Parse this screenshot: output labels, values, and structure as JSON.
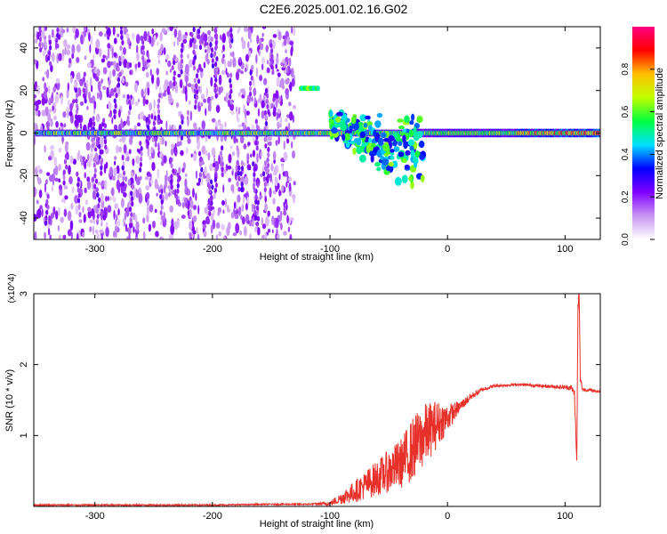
{
  "title": "C2E6.2025.001.02.16.G02",
  "chart_data": [
    {
      "type": "heatmap",
      "xlabel": "Height of straight line (km)",
      "ylabel": "Frequency (Hz)",
      "xlim": [
        -352,
        130
      ],
      "ylim": [
        -50,
        50
      ],
      "x_ticks": [
        -300,
        -200,
        -100,
        0,
        100
      ],
      "x_tick_labels": [
        "-300",
        "-200",
        "-100",
        "0",
        "100"
      ],
      "y_ticks": [
        -40,
        -20,
        0,
        20,
        40
      ],
      "y_tick_labels": [
        "-40",
        "-20",
        "0",
        "20",
        "40"
      ],
      "colorbar": {
        "label": "Normalized spectral amplitude",
        "range": [
          0,
          1
        ],
        "ticks": [
          0.0,
          0.2,
          0.4,
          0.6,
          0.8
        ],
        "tick_labels": [
          "0.0",
          "0.2",
          "0.4",
          "0.6",
          "0.8"
        ],
        "colormap": [
          "#ffffff",
          "#c896f0",
          "#8000ff",
          "#0000ff",
          "#00e0ff",
          "#00ff40",
          "#c0ff00",
          "#ffc000",
          "#ff0000",
          "#ff0080"
        ]
      },
      "features": [
        {
          "x_range": [
            -352,
            -130
          ],
          "freq_range": [
            -50,
            50
          ],
          "amplitude": 0.1,
          "desc": "scattered low-amplitude speckle"
        },
        {
          "x_range": [
            -352,
            130
          ],
          "freq_center": 0,
          "amplitude_range": [
            0.3,
            0.9
          ],
          "desc": "main signal band near 0 Hz"
        },
        {
          "x_range": [
            -125,
            -110
          ],
          "freq_center": 21,
          "amplitude": 0.45,
          "desc": "isolated feature near 20 Hz"
        },
        {
          "x_range": [
            -100,
            -20
          ],
          "freq_range": [
            -35,
            12
          ],
          "amplitude": 0.4,
          "desc": "spreading scintillation region"
        }
      ]
    },
    {
      "type": "line",
      "xlabel": "Height of straight line (km)",
      "ylabel": "SNR (10 * v/v)",
      "y_multiplier": "(x10^4)",
      "xlim": [
        -352,
        130
      ],
      "ylim": [
        0,
        3
      ],
      "x_ticks": [
        -300,
        -200,
        -100,
        0,
        100
      ],
      "x_tick_labels": [
        "-300",
        "-200",
        "-100",
        "0",
        "100"
      ],
      "y_ticks": [
        1,
        2,
        3
      ],
      "y_tick_labels": [
        "1",
        "2",
        "3"
      ],
      "color": "#e8302a",
      "series": [
        {
          "x": [
            -352,
            -300,
            -250,
            -200,
            -150,
            -120,
            -100,
            -80,
            -60,
            -40,
            -30,
            -20,
            -10,
            0,
            10,
            20,
            30,
            40,
            60,
            80,
            100,
            105,
            108,
            110,
            111,
            112,
            113,
            115,
            120,
            130
          ],
          "y": [
            0.02,
            0.02,
            0.02,
            0.02,
            0.03,
            0.03,
            0.04,
            0.2,
            0.4,
            0.6,
            0.8,
            1.0,
            1.15,
            1.25,
            1.4,
            1.55,
            1.65,
            1.7,
            1.72,
            1.7,
            1.68,
            1.68,
            1.6,
            0.6,
            2.8,
            3.0,
            1.8,
            1.65,
            1.64,
            1.62
          ],
          "noise": [
            0.01,
            0.01,
            0.01,
            0.01,
            0.01,
            0.01,
            0.03,
            0.15,
            0.25,
            0.35,
            0.45,
            0.45,
            0.35,
            0.2,
            0.08,
            0.05,
            0.03,
            0.02,
            0.02,
            0.02,
            0.03,
            0.04,
            0.05,
            0.1,
            0.1,
            0.1,
            0.06,
            0.03,
            0.02,
            0.02
          ]
        }
      ]
    }
  ]
}
